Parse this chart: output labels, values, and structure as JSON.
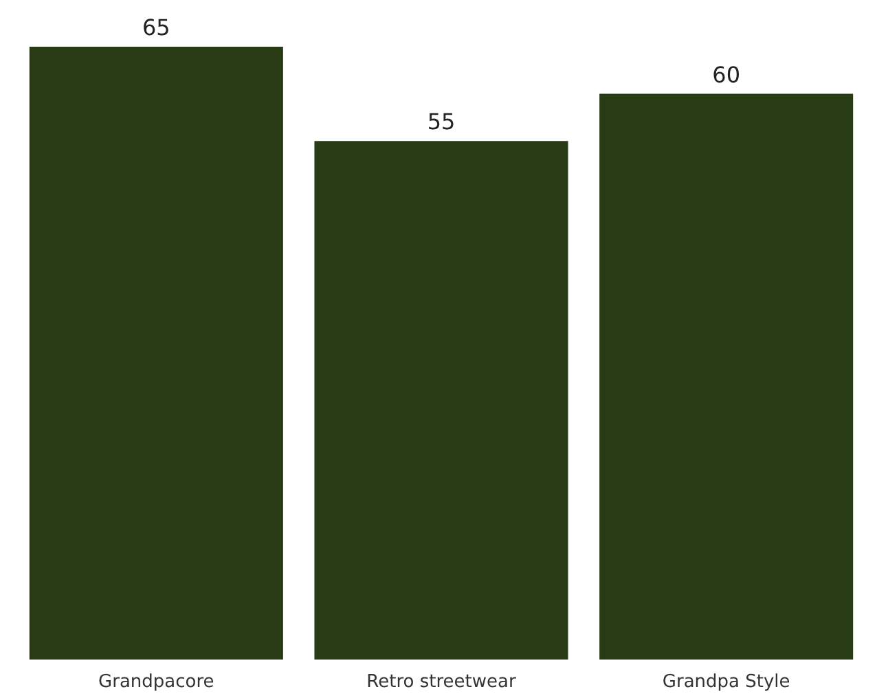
{
  "chart_data": {
    "type": "bar",
    "categories": [
      "Grandpacore",
      "Retro streetwear",
      "Grandpa Style"
    ],
    "values": [
      65,
      55,
      60
    ],
    "color": "#293b15",
    "data_labels": true,
    "tick_labels": "x"
  }
}
